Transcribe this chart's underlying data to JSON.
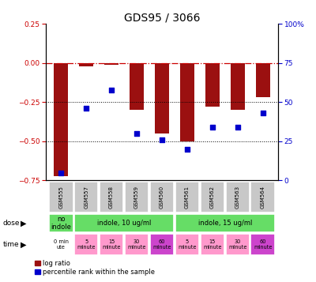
{
  "title": "GDS95 / 3066",
  "samples": [
    "GSM555",
    "GSM557",
    "GSM558",
    "GSM559",
    "GSM560",
    "GSM561",
    "GSM562",
    "GSM563",
    "GSM564"
  ],
  "log_ratio": [
    -0.72,
    -0.02,
    -0.01,
    -0.3,
    -0.45,
    -0.5,
    -0.28,
    -0.3,
    -0.22
  ],
  "percentile": [
    5,
    46,
    58,
    30,
    26,
    20,
    34,
    34,
    43
  ],
  "ylim_left": [
    -0.75,
    0.25
  ],
  "ylim_right": [
    0,
    100
  ],
  "yticks_left": [
    -0.75,
    -0.5,
    -0.25,
    0,
    0.25
  ],
  "yticks_right": [
    0,
    25,
    50,
    75,
    100
  ],
  "bar_color": "#9B1010",
  "dot_color": "#0000CC",
  "hline_color": "#CC0000",
  "gsm_color": "#C8C8C8",
  "dose_colors": [
    "#66DD66",
    "#66DD66",
    "#66DD66"
  ],
  "time_colors": [
    "white",
    "#FF99CC",
    "#FF99CC",
    "#FF99CC",
    "#CC44CC",
    "#FF99CC",
    "#FF99CC",
    "#FF99CC",
    "#CC44CC"
  ],
  "time_labels": [
    "0 min\nute",
    "5\nminute",
    "15\nminute",
    "30\nminute",
    "60\nminute",
    "5\nminute",
    "15\nminute",
    "30\nminute",
    "60\nminute"
  ],
  "legend_red": "log ratio",
  "legend_blue": "percentile rank within the sample"
}
